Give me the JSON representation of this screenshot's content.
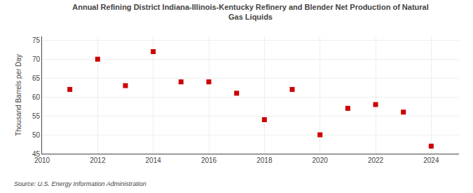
{
  "chart_data": {
    "type": "scatter",
    "title": "Annual Refining District Indiana-Illinois-Kentucky Refinery and Blender Net Production of Natural\nGas Liquids",
    "ylabel": "Thousand Barrels per Day",
    "source": "Source: U.S. Energy Information Administration",
    "x": [
      2011,
      2012,
      2013,
      2014,
      2015,
      2016,
      2017,
      2018,
      2019,
      2020,
      2021,
      2022,
      2023,
      2024
    ],
    "values": [
      62,
      70,
      63,
      72,
      64,
      64,
      61,
      54,
      62,
      50,
      57,
      58,
      56,
      47
    ],
    "color": "#cc0000",
    "marker": "square",
    "xlim": [
      2010,
      2025
    ],
    "xticks": [
      2010,
      2012,
      2014,
      2016,
      2018,
      2020,
      2022,
      2024
    ],
    "ylim": [
      45,
      76
    ],
    "yticks": [
      45,
      50,
      55,
      60,
      65,
      70,
      75
    ],
    "grid": true
  }
}
